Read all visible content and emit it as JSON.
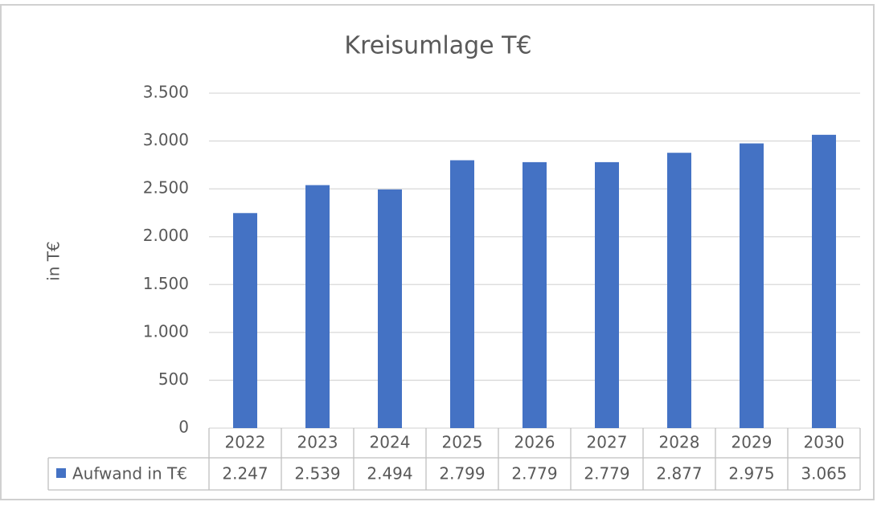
{
  "chart_data": {
    "type": "bar",
    "title": "Kreisumlage T€",
    "y_label": "in T€",
    "categories": [
      "2022",
      "2023",
      "2024",
      "2025",
      "2026",
      "2027",
      "2028",
      "2029",
      "2030"
    ],
    "series": [
      {
        "name": "Aufwand in T€",
        "color": "#4472c4",
        "values": [
          2247,
          2539,
          2494,
          2799,
          2779,
          2779,
          2877,
          2975,
          3065
        ],
        "value_labels": [
          "2.247",
          "2.539",
          "2.494",
          "2.799",
          "2.779",
          "2.779",
          "2.877",
          "2.975",
          "3.065"
        ]
      }
    ],
    "ylim": [
      0,
      3500
    ],
    "yticks": [
      0,
      500,
      {
        "value": 1000,
        "label": "1.000"
      },
      {
        "value": 1500,
        "label": "1.500"
      },
      {
        "value": 2000,
        "label": "2.000"
      },
      {
        "value": 2500,
        "label": "2.500"
      },
      {
        "value": 3000,
        "label": "3.000"
      },
      {
        "value": 3500,
        "label": "3.500"
      }
    ],
    "grid": true,
    "data_table": true
  }
}
